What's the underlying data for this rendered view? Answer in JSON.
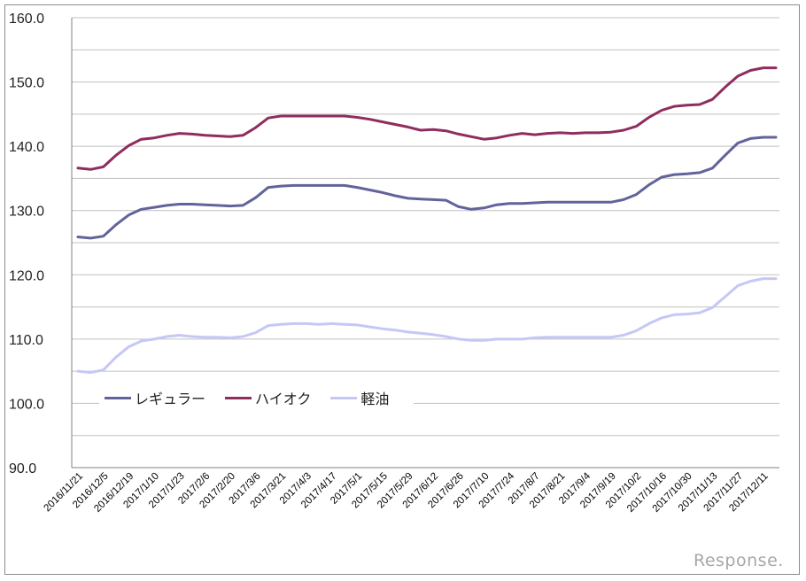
{
  "chart_data": {
    "type": "line",
    "title": "",
    "xlabel": "",
    "ylabel": "",
    "ylim": [
      90.0,
      160.0
    ],
    "yticks": [
      "160.0",
      "150.0",
      "140.0",
      "130.0",
      "120.0",
      "110.0",
      "100.0",
      "90.0"
    ],
    "grid": "horizontal, every 5.0",
    "legend_position": "inside lower-left",
    "x_tick_labels": [
      "2016/11/21",
      "2016/12/5",
      "2016/12/19",
      "2017/1/10",
      "2017/1/23",
      "2017/2/6",
      "2017/2/20",
      "2017/3/6",
      "2017/3/21",
      "2017/4/3",
      "2017/4/17",
      "2017/5/1",
      "2017/5/15",
      "2017/5/29",
      "2017/6/12",
      "2017/6/26",
      "2017/7/10",
      "2017/7/24",
      "2017/8/7",
      "2017/8/21",
      "2017/9/4",
      "2017/9/19",
      "2017/10/2",
      "2017/10/16",
      "2017/10/30",
      "2017/11/13",
      "2017/11/27",
      "2017/12/11"
    ],
    "x_points_per_tick": 2,
    "series": [
      {
        "name": "レギュラー",
        "color": "#62639a",
        "values": [
          125.9,
          125.7,
          126.0,
          127.8,
          129.3,
          130.2,
          130.5,
          130.8,
          131.0,
          131.0,
          130.9,
          130.8,
          130.7,
          130.8,
          132.0,
          133.6,
          133.8,
          133.9,
          133.9,
          133.9,
          133.9,
          133.9,
          133.6,
          133.2,
          132.8,
          132.3,
          131.9,
          131.8,
          131.7,
          131.6,
          130.6,
          130.2,
          130.4,
          130.9,
          131.1,
          131.1,
          131.2,
          131.3,
          131.3,
          131.3,
          131.3,
          131.3,
          131.3,
          131.7,
          132.5,
          134.0,
          135.2,
          135.6,
          135.7,
          135.9,
          136.6,
          138.6,
          140.5,
          141.2,
          141.4,
          141.4
        ]
      },
      {
        "name": "ハイオク",
        "color": "#8f2d5e",
        "values": [
          136.6,
          136.4,
          136.8,
          138.6,
          140.1,
          141.1,
          141.3,
          141.7,
          142.0,
          141.9,
          141.7,
          141.6,
          141.5,
          141.7,
          142.9,
          144.4,
          144.7,
          144.7,
          144.7,
          144.7,
          144.7,
          144.7,
          144.5,
          144.2,
          143.8,
          143.4,
          143.0,
          142.5,
          142.6,
          142.4,
          141.9,
          141.5,
          141.1,
          141.3,
          141.7,
          142.0,
          141.8,
          142.0,
          142.1,
          142.0,
          142.1,
          142.1,
          142.2,
          142.5,
          143.1,
          144.5,
          145.6,
          146.2,
          146.4,
          146.5,
          147.3,
          149.2,
          150.9,
          151.8,
          152.2,
          152.2
        ]
      },
      {
        "name": "軽油",
        "color": "#c5c8f5",
        "values": [
          105.0,
          104.8,
          105.2,
          107.2,
          108.8,
          109.7,
          110.0,
          110.4,
          110.6,
          110.4,
          110.3,
          110.3,
          110.2,
          110.4,
          111.0,
          112.1,
          112.3,
          112.4,
          112.4,
          112.3,
          112.4,
          112.3,
          112.2,
          111.9,
          111.6,
          111.4,
          111.1,
          110.9,
          110.7,
          110.4,
          110.0,
          109.8,
          109.8,
          110.0,
          110.0,
          110.0,
          110.2,
          110.3,
          110.3,
          110.3,
          110.3,
          110.3,
          110.3,
          110.6,
          111.3,
          112.4,
          113.3,
          113.8,
          113.9,
          114.1,
          114.9,
          116.6,
          118.3,
          119.0,
          119.4,
          119.4
        ]
      }
    ]
  },
  "legend": {
    "items": [
      {
        "label": "レギュラー",
        "color": "#62639a"
      },
      {
        "label": "ハイオク",
        "color": "#8f2d5e"
      },
      {
        "label": "軽油",
        "color": "#c5c8f5"
      }
    ]
  },
  "watermark": {
    "text": "Response."
  }
}
